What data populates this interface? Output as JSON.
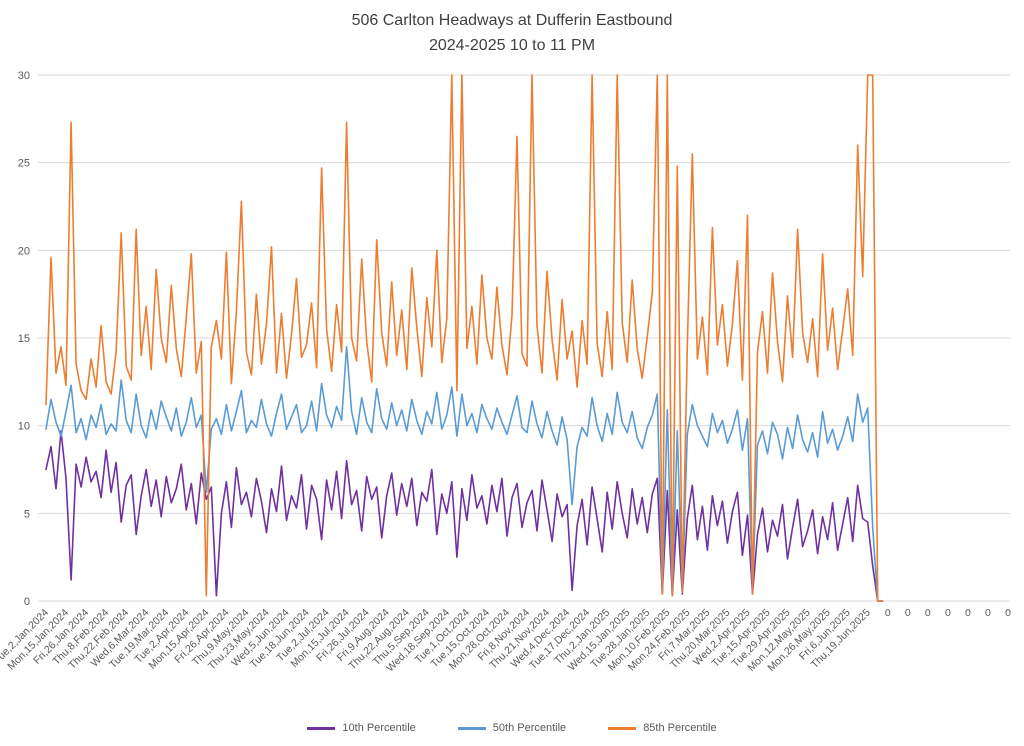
{
  "chart_data": {
    "type": "line",
    "title_line1": "506 Carlton Headways at Dufferin Eastbound",
    "title_line2": "2024-2025 10 to 11 PM",
    "ylim": [
      0,
      30
    ],
    "y_ticks": [
      0,
      5,
      10,
      15,
      20,
      25,
      30
    ],
    "grid_on": true,
    "legend_position": "bottom",
    "grid_color": "#D9D9D9",
    "axis_text_color": "#595959",
    "title_color": "#404040",
    "points_per_tick": 4,
    "x_tick_labels": [
      "Tue,2,Jan,2024",
      "Mon,15,Jan,2024",
      "Fri,26,Jan,2024",
      "Thu,8,Feb,2024",
      "Thu,22,Feb,2024",
      "Wed,6,Mar,2024",
      "Tue,19,Mar,2024",
      "Tue,2,Apr,2024",
      "Mon,15,Apr,2024",
      "Fri,26,Apr,2024",
      "Thu,9,May,2024",
      "Thu,23,May,2024",
      "Wed,5,Jun,2024",
      "Tue,18,Jun,2024",
      "Tue,2,Jul,2024",
      "Mon,15,Jul,2024",
      "Fri,26,Jul,2024",
      "Fri,9,Aug,2024",
      "Thu,22,Aug,2024",
      "Thu,5,Sep,2024",
      "Wed,18,Sep,2024",
      "Tue,1,Oct,2024",
      "Tue,15,Oct,2024",
      "Mon,28,Oct,2024",
      "Fri,8,Nov,2024",
      "Thu,21,Nov,2024",
      "Wed,4,Dec,2024",
      "Tue,17,Dec,2024",
      "Thu,2,Jan,2025",
      "Wed,15,Jan,2025",
      "Tue,28,Jan,2025",
      "Mon,10,Feb,2025",
      "Mon,24,Feb,2025",
      "Fri,7,Mar,2025",
      "Thu,20,Mar,2025",
      "Wed,2,Apr,2025",
      "Tue,15,Apr,2025",
      "Tue,29,Apr,2025",
      "Mon,12,May,2025",
      "Mon,26,May,2025",
      "Fri,6,Jun,2025",
      "Thu,19,Jun,2025",
      "0",
      "0",
      "0",
      "0",
      "0",
      "0",
      "0"
    ],
    "series": [
      {
        "name": "10th Percentile",
        "color": "#7030A0",
        "values": [
          7.5,
          8.8,
          6.4,
          9.7,
          7.0,
          1.2,
          7.8,
          6.5,
          8.2,
          6.8,
          7.4,
          5.9,
          8.6,
          6.2,
          7.9,
          4.5,
          6.6,
          7.2,
          3.8,
          6.0,
          7.5,
          5.4,
          6.9,
          4.8,
          7.1,
          5.6,
          6.4,
          7.8,
          5.2,
          6.7,
          4.4,
          7.3,
          5.8,
          6.5,
          0.3,
          5.0,
          6.8,
          4.2,
          7.6,
          5.5,
          6.2,
          4.8,
          7.0,
          5.7,
          3.9,
          6.4,
          5.1,
          7.7,
          4.6,
          6.0,
          5.3,
          7.2,
          4.1,
          6.6,
          5.8,
          3.5,
          6.9,
          5.2,
          7.4,
          4.7,
          8.0,
          5.5,
          6.3,
          4.0,
          7.1,
          5.8,
          6.5,
          3.6,
          6.0,
          7.3,
          4.9,
          6.7,
          5.4,
          7.0,
          4.3,
          6.2,
          5.7,
          7.5,
          3.8,
          6.1,
          5.0,
          6.8,
          2.5,
          6.4,
          4.6,
          7.2,
          5.3,
          6.0,
          4.4,
          6.6,
          5.1,
          7.0,
          3.7,
          5.9,
          6.7,
          4.2,
          5.6,
          6.3,
          4.0,
          6.9,
          5.2,
          3.4,
          6.1,
          4.8,
          5.5,
          0.6,
          4.3,
          5.8,
          3.2,
          6.5,
          4.7,
          2.8,
          6.2,
          4.1,
          6.8,
          5.0,
          3.6,
          6.4,
          4.4,
          5.9,
          3.9,
          6.1,
          7.0,
          0.4,
          6.3,
          0.3,
          5.2,
          0.4,
          4.7,
          6.6,
          3.5,
          5.4,
          2.9,
          6.0,
          4.3,
          5.7,
          3.3,
          5.1,
          6.2,
          2.6,
          4.9,
          0.4,
          3.8,
          5.3,
          2.8,
          4.6,
          3.7,
          5.5,
          2.4,
          4.2,
          5.8,
          3.1,
          4.0,
          5.2,
          2.7,
          4.8,
          3.5,
          5.6,
          2.9,
          4.4,
          5.9,
          3.4,
          6.6,
          4.7,
          4.5,
          2.0,
          0.0,
          0.0
        ]
      },
      {
        "name": "50th Percentile",
        "color": "#5B9BD5",
        "values": [
          9.8,
          11.5,
          10.2,
          9.4,
          10.8,
          12.3,
          9.6,
          10.4,
          9.2,
          10.6,
          9.9,
          11.2,
          9.5,
          10.1,
          9.7,
          12.6,
          10.3,
          9.6,
          11.8,
          10.0,
          9.3,
          10.9,
          9.8,
          11.4,
          10.5,
          9.7,
          11.0,
          9.4,
          10.2,
          11.6,
          9.9,
          10.6,
          6.2,
          9.8,
          10.4,
          9.5,
          11.2,
          9.7,
          10.8,
          12.0,
          9.6,
          10.3,
          9.9,
          11.5,
          10.1,
          9.4,
          10.7,
          11.8,
          9.8,
          10.5,
          11.2,
          9.6,
          10.0,
          11.4,
          9.7,
          12.4,
          10.6,
          9.9,
          11.1,
          10.3,
          14.5,
          10.8,
          9.5,
          11.6,
          10.2,
          9.6,
          12.1,
          10.4,
          9.8,
          11.3,
          10.0,
          10.9,
          9.7,
          11.5,
          10.3,
          9.5,
          10.8,
          10.1,
          11.9,
          9.8,
          10.6,
          12.2,
          9.4,
          11.8,
          10.0,
          10.7,
          9.6,
          11.2,
          10.4,
          9.8,
          11.0,
          10.2,
          9.5,
          10.6,
          11.7,
          9.9,
          9.6,
          11.4,
          10.1,
          9.3,
          10.8,
          9.7,
          8.9,
          10.5,
          9.2,
          5.5,
          8.8,
          9.9,
          9.4,
          11.6,
          10.0,
          9.1,
          10.7,
          9.5,
          11.9,
          10.2,
          9.6,
          10.8,
          9.3,
          8.7,
          9.9,
          10.6,
          11.8,
          0.4,
          10.9,
          0.3,
          9.7,
          0.5,
          9.5,
          11.2,
          10.0,
          9.4,
          8.8,
          10.7,
          9.6,
          10.3,
          9.0,
          9.8,
          10.9,
          8.6,
          10.4,
          0.5,
          8.9,
          9.7,
          8.4,
          10.2,
          9.5,
          8.1,
          9.9,
          8.7,
          10.6,
          9.2,
          8.5,
          9.6,
          8.2,
          10.8,
          9.0,
          9.8,
          8.6,
          9.4,
          10.5,
          9.1,
          11.8,
          10.2,
          11.0,
          4.2,
          0.0,
          0.0
        ]
      },
      {
        "name": "85th Percentile",
        "color": "#ED7D31",
        "values": [
          11.2,
          19.6,
          13.0,
          14.5,
          12.3,
          27.3,
          13.5,
          12.0,
          11.5,
          13.8,
          12.2,
          15.7,
          12.5,
          11.8,
          14.2,
          21.0,
          13.4,
          12.6,
          21.2,
          14.0,
          16.8,
          13.2,
          18.9,
          15.0,
          13.6,
          18.0,
          14.4,
          12.8,
          16.2,
          19.8,
          13.0,
          14.8,
          0.3,
          14.5,
          16.0,
          13.8,
          19.9,
          12.4,
          16.5,
          22.8,
          14.2,
          12.9,
          17.5,
          13.5,
          15.8,
          20.2,
          13.0,
          16.4,
          12.7,
          15.2,
          18.4,
          13.9,
          14.6,
          17.0,
          13.3,
          24.7,
          15.5,
          13.1,
          16.9,
          14.2,
          27.3,
          15.0,
          13.7,
          19.5,
          14.8,
          12.5,
          20.6,
          15.3,
          13.4,
          18.2,
          14.0,
          16.6,
          13.2,
          19.0,
          15.6,
          12.8,
          17.3,
          14.5,
          20.0,
          13.6,
          16.1,
          30.0,
          12.0,
          30.0,
          14.4,
          16.8,
          13.5,
          18.6,
          15.0,
          13.8,
          17.9,
          14.6,
          12.9,
          16.3,
          26.5,
          14.1,
          13.4,
          30.0,
          15.7,
          13.0,
          18.8,
          14.9,
          12.6,
          17.2,
          13.8,
          15.4,
          12.2,
          16.0,
          13.5,
          30.0,
          14.7,
          12.8,
          16.5,
          13.2,
          30.0,
          15.9,
          13.6,
          18.3,
          14.4,
          12.7,
          15.1,
          17.6,
          30.0,
          0.4,
          30.0,
          0.3,
          24.8,
          0.5,
          14.5,
          25.5,
          13.8,
          16.2,
          12.9,
          21.3,
          14.6,
          16.9,
          13.4,
          15.8,
          19.4,
          12.6,
          22.0,
          0.4,
          14.2,
          16.5,
          13.0,
          18.7,
          14.8,
          12.5,
          17.4,
          13.9,
          21.2,
          15.3,
          13.6,
          16.1,
          12.8,
          19.8,
          14.3,
          16.7,
          13.2,
          15.5,
          17.8,
          14.0,
          26.0,
          18.5,
          30.0,
          30.0,
          0.0,
          0.0
        ]
      }
    ]
  }
}
